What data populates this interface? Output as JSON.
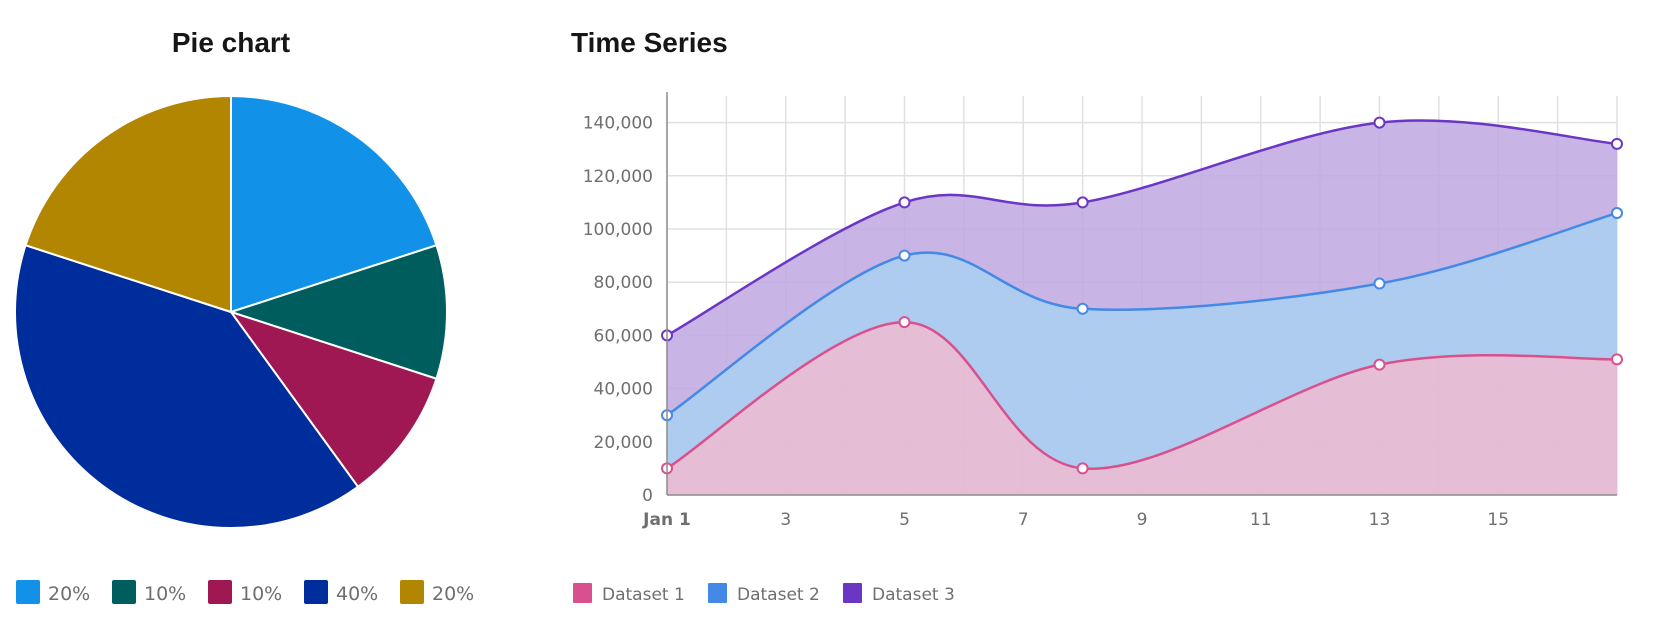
{
  "chart_data": [
    {
      "type": "pie",
      "title": "Pie chart",
      "slices": [
        {
          "label": "20%",
          "value": 20,
          "color": "#1192e8"
        },
        {
          "label": "10%",
          "value": 10,
          "color": "#005d5d"
        },
        {
          "label": "10%",
          "value": 10,
          "color": "#9f1853"
        },
        {
          "label": "40%",
          "value": 40,
          "color": "#002d9c"
        },
        {
          "label": "20%",
          "value": 20,
          "color": "#b28600"
        }
      ],
      "legend_position": "bottom"
    },
    {
      "type": "area",
      "title": "Time Series",
      "x_ticks": [
        "Jan 1",
        "3",
        "5",
        "7",
        "9",
        "11",
        "13",
        "15"
      ],
      "x_tick_days": [
        1,
        3,
        5,
        7,
        9,
        11,
        13,
        15
      ],
      "xlim": [
        "Jan 1",
        "Jan 17"
      ],
      "ylim": [
        0,
        150000
      ],
      "y_ticks": [
        0,
        20000,
        40000,
        60000,
        80000,
        100000,
        120000,
        140000
      ],
      "y_tick_labels": [
        "0",
        "20,000",
        "40,000",
        "60,000",
        "80,000",
        "100,000",
        "120,000",
        "140,000"
      ],
      "x": [
        "Jan 1",
        "Jan 5",
        "Jan 8",
        "Jan 13",
        "Jan 17"
      ],
      "x_days": [
        1,
        5,
        8,
        13,
        17
      ],
      "grid": true,
      "legend_position": "bottom",
      "series": [
        {
          "name": "Dataset 1",
          "values": [
            10000,
            65000,
            10000,
            49000,
            51000
          ],
          "color": "#d9508e",
          "fill": "#eebad0"
        },
        {
          "name": "Dataset 2",
          "values": [
            30000,
            90000,
            70000,
            79500,
            106000
          ],
          "color": "#4589e6",
          "fill": "#a8d0f2"
        },
        {
          "name": "Dataset 3",
          "values": [
            60000,
            110000,
            110000,
            140000,
            132000
          ],
          "color": "#6c36c4",
          "fill": "#bea8e0"
        }
      ]
    }
  ]
}
